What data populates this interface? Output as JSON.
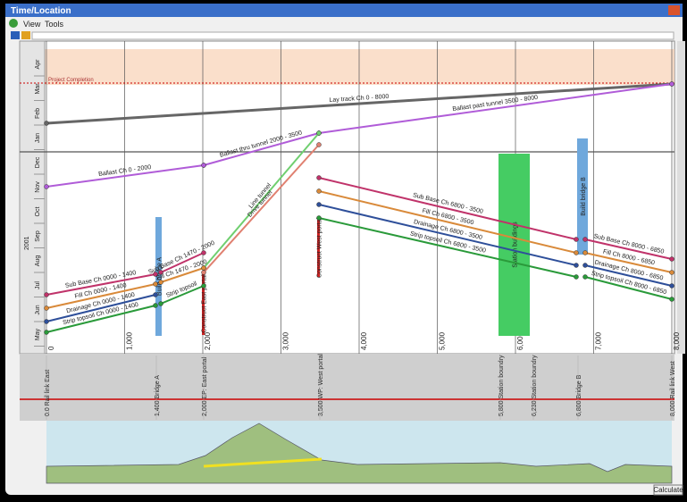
{
  "window": {
    "title": "Time/Location",
    "menu": [
      "View",
      "Tools"
    ]
  },
  "time_axis": {
    "year": "2001",
    "months": [
      "Apr",
      "Mar",
      "Feb",
      "Jan",
      "Dec",
      "Nov",
      "Oct",
      "Sep",
      "Aug",
      "Jul",
      "Jun",
      "May"
    ]
  },
  "project_completion": "Project Completion",
  "activities": [
    {
      "label": "Lay track Ch 0 - 8000"
    },
    {
      "label": "Ballast past tunnel 3500 - 8000"
    },
    {
      "label": "Ballast thru tunnel 2000 - 3500"
    },
    {
      "label": "Ballast Ch 0 - 2000"
    },
    {
      "label": "Line tunnel"
    },
    {
      "label": "Drive tunnel"
    },
    {
      "label": "Sub Base Ch 0000 - 1400"
    },
    {
      "label": "Sub Base Ch 1470 - 2000"
    },
    {
      "label": "Fill Ch 0000 - 1400"
    },
    {
      "label": "Fill Ch 1470 - 2000"
    },
    {
      "label": "Drainage Ch 0000 - 1400"
    },
    {
      "label": "Strip topsoil Ch 0000 - 1400"
    },
    {
      "label": "Strip topsoil"
    },
    {
      "label": "Sub Base Ch 6800 - 3500"
    },
    {
      "label": "Fill Ch 6800 - 3500"
    },
    {
      "label": "Drainage Ch 6800 - 3500"
    },
    {
      "label": "Strip topsoil Ch 6800 - 3500"
    },
    {
      "label": "Sub Base Ch 8000 - 6850"
    },
    {
      "label": "Fill Ch 8000 - 6850"
    },
    {
      "label": "Drainage Ch 8000 - 6850"
    },
    {
      "label": "Strip topsoil Ch 8000 - 6850"
    }
  ],
  "blocks": [
    {
      "label": "Build bridge A"
    },
    {
      "label": "Station buildings"
    },
    {
      "label": "Build bridge B"
    },
    {
      "label": "Construct West portal"
    },
    {
      "label": "Construct East portal"
    }
  ],
  "chainage_ticks": [
    "0",
    "1,000",
    "2,000",
    "3,000",
    "4,000",
    "5,000",
    "6,000",
    "7,000",
    "8,000"
  ],
  "locations": [
    "0.0 Rail link East",
    "1,400 Bridge A",
    "2,000 EP: East portal",
    "3,500 WP: West portal",
    "5,800 Station boundry",
    "6,230 Station boundry",
    "6,800 Bridge B",
    "8,000 Rail link West"
  ],
  "button": "Calculate"
}
